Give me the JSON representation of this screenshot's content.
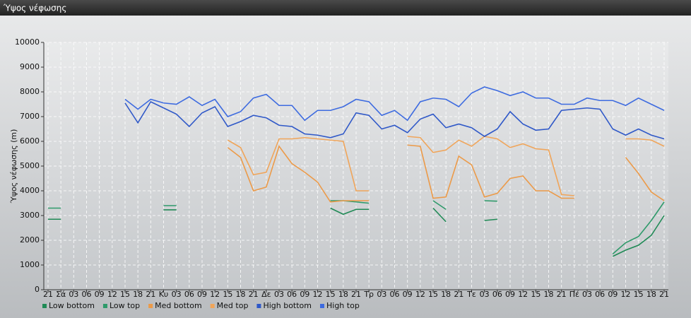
{
  "chart_data": {
    "type": "line",
    "title": "Ύψος νέφωσης",
    "y_label": "Ύψος νέφωσης (m)",
    "categories": [
      "21",
      "Σά",
      "03",
      "06",
      "09",
      "12",
      "15",
      "18",
      "21",
      "Κυ",
      "03",
      "06",
      "09",
      "12",
      "15",
      "18",
      "21",
      "Δε",
      "03",
      "06",
      "09",
      "12",
      "15",
      "18",
      "21",
      "Τρ",
      "03",
      "06",
      "09",
      "12",
      "15",
      "18",
      "21",
      "Τε",
      "03",
      "06",
      "09",
      "12",
      "15",
      "18",
      "21",
      "Πέ",
      "03",
      "06",
      "09",
      "12",
      "15",
      "18",
      "21"
    ],
    "ylim": [
      0,
      10000
    ],
    "yticks": [
      0,
      1000,
      2000,
      3000,
      4000,
      5000,
      6000,
      7000,
      8000,
      9000,
      10000
    ],
    "grid": true,
    "legend": "bottom",
    "series": [
      {
        "name": "Low bottom",
        "color": "#1f8a55",
        "values": [
          2850,
          2850,
          null,
          null,
          null,
          null,
          null,
          null,
          null,
          3230,
          3230,
          null,
          null,
          null,
          null,
          null,
          null,
          null,
          null,
          null,
          null,
          null,
          3300,
          3050,
          3250,
          3250,
          null,
          null,
          null,
          null,
          3300,
          2750,
          null,
          null,
          2800,
          2850,
          null,
          null,
          null,
          null,
          null,
          null,
          null,
          null,
          1350,
          1600,
          1800,
          2200,
          3000
        ]
      },
      {
        "name": "Low top",
        "color": "#2e9a6a",
        "values": [
          3300,
          3300,
          null,
          null,
          null,
          null,
          null,
          null,
          null,
          3400,
          3400,
          null,
          null,
          null,
          null,
          null,
          null,
          null,
          null,
          null,
          null,
          null,
          3600,
          3600,
          3550,
          3500,
          null,
          null,
          null,
          null,
          3600,
          3250,
          null,
          null,
          3600,
          3580,
          null,
          null,
          null,
          null,
          null,
          null,
          null,
          null,
          1450,
          1900,
          2150,
          2800,
          3550
        ]
      },
      {
        "name": "Med bottom",
        "color": "#ec9a48",
        "values": [
          null,
          null,
          null,
          null,
          null,
          null,
          null,
          null,
          null,
          null,
          null,
          null,
          null,
          null,
          5750,
          5350,
          4000,
          4150,
          5800,
          5100,
          4750,
          4350,
          3550,
          3600,
          3600,
          3600,
          null,
          null,
          5850,
          5800,
          3700,
          3750,
          5400,
          5050,
          3750,
          3900,
          4500,
          4600,
          4000,
          4000,
          3700,
          3700,
          null,
          null,
          null,
          5350,
          4700,
          3950,
          3600
        ]
      },
      {
        "name": "Med top",
        "color": "#f0a55a",
        "values": [
          null,
          null,
          null,
          null,
          null,
          null,
          null,
          null,
          null,
          null,
          null,
          null,
          null,
          null,
          6050,
          5750,
          4650,
          4750,
          6100,
          6100,
          6150,
          6100,
          6050,
          6000,
          4000,
          4000,
          null,
          null,
          6200,
          6150,
          5550,
          5650,
          6050,
          5800,
          6200,
          6100,
          5750,
          5900,
          5700,
          5650,
          3850,
          3800,
          null,
          null,
          null,
          6100,
          6100,
          6050,
          5800
        ]
      },
      {
        "name": "High bottom",
        "color": "#2f58c8",
        "values": [
          null,
          null,
          null,
          null,
          null,
          null,
          7550,
          6750,
          7600,
          7350,
          7100,
          6600,
          7150,
          7400,
          6600,
          6800,
          7050,
          6950,
          6650,
          6600,
          6300,
          6250,
          6150,
          6300,
          7150,
          7050,
          6500,
          6650,
          6350,
          6900,
          7100,
          6550,
          6700,
          6550,
          6200,
          6500,
          7200,
          6700,
          6450,
          6500,
          7250,
          7300,
          7350,
          7300,
          6500,
          6250,
          6500,
          6250,
          6100
        ]
      },
      {
        "name": "High top",
        "color": "#3d6be0",
        "values": [
          null,
          null,
          null,
          null,
          null,
          null,
          7700,
          7300,
          7700,
          7550,
          7500,
          7800,
          7450,
          7700,
          7000,
          7200,
          7750,
          7900,
          7450,
          7450,
          6850,
          7250,
          7250,
          7400,
          7700,
          7600,
          7050,
          7250,
          6850,
          7600,
          7750,
          7700,
          7400,
          7950,
          8200,
          8050,
          7850,
          8000,
          7750,
          7750,
          7500,
          7500,
          7750,
          7650,
          7650,
          7450,
          7750,
          7500,
          7250
        ]
      }
    ]
  }
}
